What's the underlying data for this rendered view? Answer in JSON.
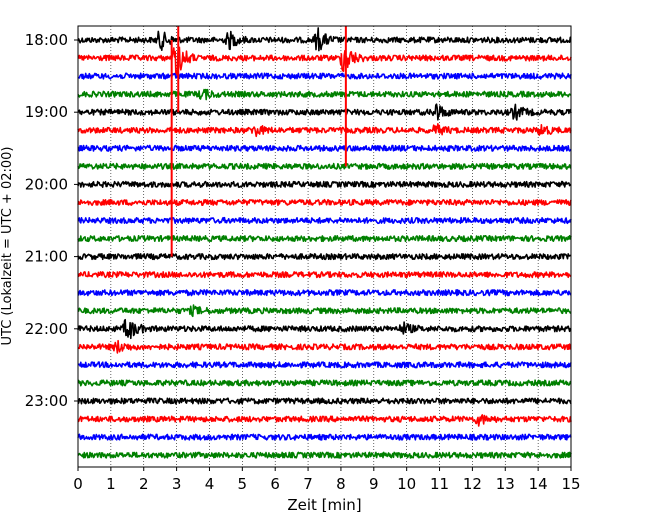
{
  "chart_data": {
    "type": "line",
    "title": "",
    "xlabel": "Zeit  [min]",
    "ylabel": "UTC (Lokalzeit = UTC + 02:00)",
    "xlim": [
      0,
      15
    ],
    "x_ticks": [
      "0",
      "1",
      "2",
      "3",
      "4",
      "5",
      "6",
      "7",
      "8",
      "9",
      "10",
      "11",
      "12",
      "13",
      "14",
      "15"
    ],
    "y_ticks": [
      "18:00",
      "19:00",
      "20:00",
      "21:00",
      "22:00",
      "23:00"
    ],
    "grid": "vertical dotted lines at each minute",
    "trace_colors": [
      "#000000",
      "#ff0000",
      "#0000ff",
      "#008000"
    ],
    "traces": [
      {
        "start": "18:00",
        "color": "#000000",
        "events": [
          {
            "t": 2.5,
            "amp": 0.6
          },
          {
            "t": 4.6,
            "amp": 0.5
          },
          {
            "t": 7.3,
            "amp": 0.7
          }
        ]
      },
      {
        "start": "18:15",
        "color": "#ff0000",
        "events": [
          {
            "t": 3.0,
            "amp": 1.2
          },
          {
            "t": 8.1,
            "amp": 1.0
          }
        ]
      },
      {
        "start": "18:30",
        "color": "#0000ff",
        "events": []
      },
      {
        "start": "18:45",
        "color": "#008000",
        "events": [
          {
            "t": 3.8,
            "amp": 0.3
          }
        ]
      },
      {
        "start": "19:00",
        "color": "#000000",
        "events": [
          {
            "t": 10.9,
            "amp": 0.5
          },
          {
            "t": 13.3,
            "amp": 0.4
          }
        ]
      },
      {
        "start": "19:15",
        "color": "#ff0000",
        "events": [
          {
            "t": 5.4,
            "amp": 0.3
          },
          {
            "t": 10.9,
            "amp": 0.3
          },
          {
            "t": 14.1,
            "amp": 0.3
          }
        ]
      },
      {
        "start": "19:30",
        "color": "#0000ff",
        "events": []
      },
      {
        "start": "19:45",
        "color": "#008000",
        "events": []
      },
      {
        "start": "20:00",
        "color": "#000000",
        "events": []
      },
      {
        "start": "20:15",
        "color": "#ff0000",
        "events": []
      },
      {
        "start": "20:30",
        "color": "#0000ff",
        "events": []
      },
      {
        "start": "20:45",
        "color": "#008000",
        "events": []
      },
      {
        "start": "21:00",
        "color": "#000000",
        "events": []
      },
      {
        "start": "21:15",
        "color": "#ff0000",
        "events": []
      },
      {
        "start": "21:30",
        "color": "#0000ff",
        "events": []
      },
      {
        "start": "21:45",
        "color": "#008000",
        "events": [
          {
            "t": 3.5,
            "amp": 0.2
          }
        ]
      },
      {
        "start": "22:00",
        "color": "#000000",
        "events": [
          {
            "t": 1.5,
            "amp": 0.8
          },
          {
            "t": 9.9,
            "amp": 0.3
          }
        ]
      },
      {
        "start": "22:15",
        "color": "#ff0000",
        "events": [
          {
            "t": 1.2,
            "amp": 0.3
          }
        ]
      },
      {
        "start": "22:30",
        "color": "#0000ff",
        "events": []
      },
      {
        "start": "22:45",
        "color": "#008000",
        "events": []
      },
      {
        "start": "23:00",
        "color": "#000000",
        "events": []
      },
      {
        "start": "23:15",
        "color": "#ff0000",
        "events": [
          {
            "t": 12.2,
            "amp": 0.3
          }
        ]
      },
      {
        "start": "23:30",
        "color": "#0000ff",
        "events": []
      },
      {
        "start": "23:45",
        "color": "#008000",
        "events": []
      }
    ],
    "spikes": [
      {
        "t": 2.85,
        "from_trace": 1,
        "to_trace": 12,
        "color": "#ff0000"
      },
      {
        "t": 3.05,
        "from_trace": 0,
        "to_trace": 4,
        "color": "#ff0000"
      },
      {
        "t": 8.15,
        "from_trace": 0,
        "to_trace": 7,
        "color": "#ff0000"
      }
    ]
  }
}
